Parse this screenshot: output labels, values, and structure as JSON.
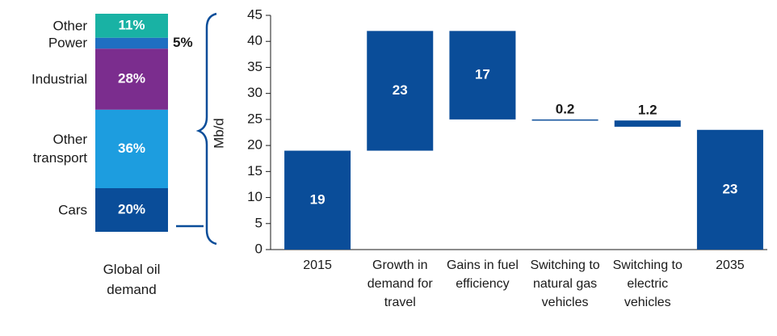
{
  "chart_data": [
    {
      "type": "stacked-bar",
      "categories": [
        "Global oil demand"
      ],
      "series": [
        {
          "name": "Cars",
          "color": "#0a4d99",
          "values": [
            20
          ],
          "value_labels": [
            "20%"
          ]
        },
        {
          "name": "Other transport",
          "color": "#1d9ddf",
          "values": [
            36
          ],
          "value_labels": [
            "36%"
          ]
        },
        {
          "name": "Industrial",
          "color": "#7b2d8e",
          "values": [
            28
          ],
          "value_labels": [
            "28%"
          ]
        },
        {
          "name": "Power",
          "color": "#1f6fc2",
          "values": [
            5
          ],
          "value_labels": [
            "5%"
          ]
        },
        {
          "name": "Other",
          "color": "#19b2a4",
          "values": [
            11
          ],
          "value_labels": [
            "11%"
          ]
        }
      ]
    },
    {
      "type": "waterfall",
      "y_label": "Mb/d",
      "categories": [
        "2015",
        "Growth in demand for travel",
        "Gains in fuel efficiency",
        "Switching to natural gas vehicles",
        "Switching to electric vehicles",
        "2035"
      ],
      "values": [
        19,
        23,
        -17,
        -0.2,
        -1.2,
        23
      ],
      "value_labels": [
        "19",
        "23",
        "17",
        "0.2",
        "1.2",
        "23"
      ],
      "color": "#0a4d99",
      "ylim": [
        0,
        45
      ],
      "yticks": [
        0,
        5,
        10,
        15,
        20,
        25,
        30,
        35,
        40,
        45
      ],
      "grid": false
    }
  ]
}
